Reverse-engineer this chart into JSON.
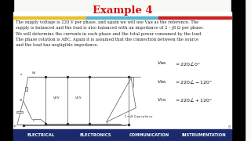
{
  "title": "Example 4",
  "title_color": "#cc1111",
  "title_fontsize": 9.5,
  "bg_color": "#f8f8f4",
  "separator_colors": [
    "#e8c030",
    "#5ab8d0",
    "#cc2222"
  ],
  "body_text": "The supply voltage is 220 V per phase, and again we will use Vᴀɴ as the reference. The\nsupply is balanced and the load is also balanced with an impedance of 2 – j8 Ω per phase.\nWe will determine the currents in each phase and the total power consumed by the load.\nThe phase rotation is ABC. Again it is assumed that the connection between the source\nand the load has negligible impedance.",
  "body_fontsize": 3.8,
  "footer_bg": "#1a2a6c",
  "footer_text_color": "#ffffff",
  "footer_labels": [
    "ELECTRICAL",
    "ELECTRONICS",
    "COMMUNICATION",
    "INSTRUMENTATION"
  ],
  "footer_fontsize": 3.8,
  "page_num": "8"
}
